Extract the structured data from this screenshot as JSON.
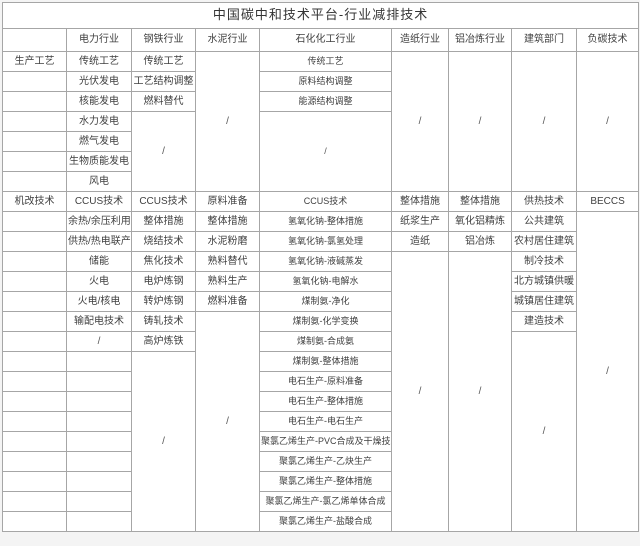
{
  "colors": {
    "border": "#a6a6a6",
    "text": "#3f3f3f",
    "title_text": "#333333",
    "table_background": "#ffffff",
    "page_background": "#f4f4f4"
  },
  "chart_data": {
    "type": "table",
    "title": "中国碳中和技术平台-行业减排技术",
    "row_section_labels": [
      "生产工艺",
      "机改技术"
    ],
    "column_headers": [
      "",
      "电力行业",
      "钢铁行业",
      "水泥行业",
      "石化化工行业",
      "造纸行业",
      "铝冶炼行业",
      "建筑部门",
      "负碳技术"
    ],
    "empty_marker": "/",
    "rows": [
      {
        "cells": [
          {
            "t": "生产工艺",
            "kind": "section-label"
          },
          {
            "t": "传统工艺"
          },
          {
            "t": "传统工艺"
          },
          {
            "t": "/",
            "rs": 7,
            "kind": "slash"
          },
          {
            "t": "传统工艺"
          },
          {
            "t": "/",
            "rs": 7,
            "kind": "slash"
          },
          {
            "t": "/",
            "rs": 7,
            "kind": "slash"
          },
          {
            "t": "/",
            "rs": 7,
            "kind": "slash"
          },
          {
            "t": "/",
            "rs": 7,
            "kind": "slash"
          }
        ]
      },
      {
        "cells": [
          {
            "t": ""
          },
          {
            "t": "光伏发电"
          },
          {
            "t": "工艺结构调整"
          },
          {
            "t": "原料结构调整"
          }
        ]
      },
      {
        "cells": [
          {
            "t": ""
          },
          {
            "t": "核能发电"
          },
          {
            "t": "燃料替代"
          },
          {
            "t": "能源结构调整"
          }
        ]
      },
      {
        "cells": [
          {
            "t": ""
          },
          {
            "t": "水力发电"
          },
          {
            "t": "/",
            "rs": 4,
            "kind": "slash"
          },
          {
            "t": "/",
            "rs": 4,
            "kind": "slash"
          }
        ]
      },
      {
        "cells": [
          {
            "t": ""
          },
          {
            "t": "燃气发电"
          }
        ]
      },
      {
        "cells": [
          {
            "t": ""
          },
          {
            "t": "生物质能发电"
          }
        ]
      },
      {
        "cells": [
          {
            "t": ""
          },
          {
            "t": "风电"
          }
        ]
      },
      {
        "cells": [
          {
            "t": "机改技术",
            "kind": "section-label"
          },
          {
            "t": "CCUS技术"
          },
          {
            "t": "CCUS技术"
          },
          {
            "t": "原料准备"
          },
          {
            "t": "CCUS技术"
          },
          {
            "t": "整体措施"
          },
          {
            "t": "整体措施"
          },
          {
            "t": "供热技术"
          },
          {
            "t": "BECCS"
          }
        ]
      },
      {
        "cells": [
          {
            "t": ""
          },
          {
            "t": "余热/余压利用"
          },
          {
            "t": "整体措施"
          },
          {
            "t": "整体措施"
          },
          {
            "t": "氢氧化钠-整体措施"
          },
          {
            "t": "纸浆生产"
          },
          {
            "t": "氧化铝精炼"
          },
          {
            "t": "公共建筑"
          },
          {
            "t": "/",
            "rs": 16,
            "kind": "slash"
          }
        ]
      },
      {
        "cells": [
          {
            "t": ""
          },
          {
            "t": "供热/热电联产"
          },
          {
            "t": "烧结技术"
          },
          {
            "t": "水泥粉磨"
          },
          {
            "t": "氢氧化钠-氯氢处理"
          },
          {
            "t": "造纸"
          },
          {
            "t": "铝冶炼"
          },
          {
            "t": "农村居住建筑"
          }
        ]
      },
      {
        "cells": [
          {
            "t": ""
          },
          {
            "t": "储能"
          },
          {
            "t": "焦化技术"
          },
          {
            "t": "熟料替代"
          },
          {
            "t": "氢氧化钠-液碱蒸发"
          },
          {
            "t": "/",
            "rs": 14,
            "kind": "slash"
          },
          {
            "t": "/",
            "rs": 14,
            "kind": "slash"
          },
          {
            "t": "制冷技术"
          }
        ]
      },
      {
        "cells": [
          {
            "t": ""
          },
          {
            "t": "火电"
          },
          {
            "t": "电炉炼钢"
          },
          {
            "t": "熟料生产"
          },
          {
            "t": "氢氧化钠-电解水"
          },
          {
            "t": "北方城镇供暖"
          }
        ]
      },
      {
        "cells": [
          {
            "t": ""
          },
          {
            "t": "火电/核电"
          },
          {
            "t": "转炉炼钢"
          },
          {
            "t": "燃料准备"
          },
          {
            "t": "煤制氨-净化"
          },
          {
            "t": "城镇居住建筑"
          }
        ]
      },
      {
        "cells": [
          {
            "t": ""
          },
          {
            "t": "输配电技术"
          },
          {
            "t": "铸轧技术"
          },
          {
            "t": "/",
            "rs": 11,
            "kind": "slash"
          },
          {
            "t": "煤制氨-化学变换"
          },
          {
            "t": "建造技术"
          }
        ]
      },
      {
        "cells": [
          {
            "t": ""
          },
          {
            "t": "/",
            "kind": "slash"
          },
          {
            "t": "高炉炼铁"
          },
          {
            "t": "煤制氨-合成氨"
          },
          {
            "t": "/",
            "rs": 10,
            "kind": "slash"
          }
        ]
      },
      {
        "cells": [
          {
            "t": ""
          },
          {
            "t": ""
          },
          {
            "t": "/",
            "rs": 9,
            "kind": "slash"
          },
          {
            "t": "煤制氨-整体措施"
          }
        ]
      },
      {
        "cells": [
          {
            "t": ""
          },
          {
            "t": ""
          },
          {
            "t": "电石生产-原料准备"
          }
        ]
      },
      {
        "cells": [
          {
            "t": ""
          },
          {
            "t": ""
          },
          {
            "t": "电石生产-整体措施"
          }
        ]
      },
      {
        "cells": [
          {
            "t": ""
          },
          {
            "t": ""
          },
          {
            "t": "电石生产-电石生产"
          }
        ]
      },
      {
        "cells": [
          {
            "t": ""
          },
          {
            "t": ""
          },
          {
            "t": "聚氯乙烯生产-PVC合成及干燥技术"
          }
        ]
      },
      {
        "cells": [
          {
            "t": ""
          },
          {
            "t": ""
          },
          {
            "t": "聚氯乙烯生产-乙炔生产"
          }
        ]
      },
      {
        "cells": [
          {
            "t": ""
          },
          {
            "t": ""
          },
          {
            "t": "聚氯乙烯生产-整体措施"
          }
        ]
      },
      {
        "cells": [
          {
            "t": ""
          },
          {
            "t": ""
          },
          {
            "t": "聚氯乙烯生产-氯乙烯单体合成"
          }
        ]
      },
      {
        "cells": [
          {
            "t": ""
          },
          {
            "t": ""
          },
          {
            "t": "聚氯乙烯生产-盐酸合成"
          }
        ]
      }
    ]
  }
}
